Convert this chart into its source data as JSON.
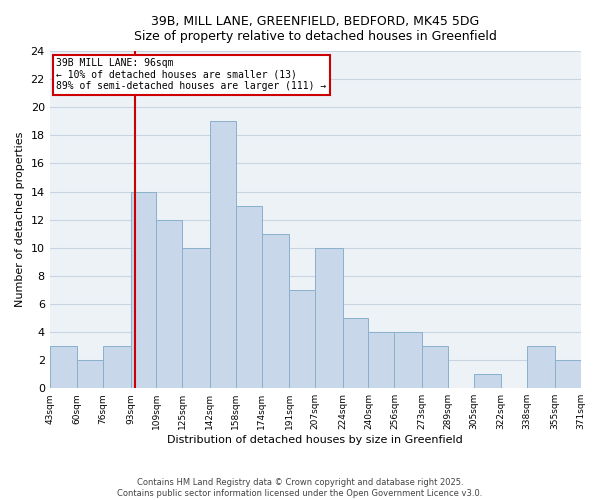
{
  "title_line1": "39B, MILL LANE, GREENFIELD, BEDFORD, MK45 5DG",
  "title_line2": "Size of property relative to detached houses in Greenfield",
  "xlabel": "Distribution of detached houses by size in Greenfield",
  "ylabel": "Number of detached properties",
  "bar_edges": [
    43,
    60,
    76,
    93,
    109,
    125,
    142,
    158,
    174,
    191,
    207,
    224,
    240,
    256,
    273,
    289,
    305,
    322,
    338,
    355,
    371
  ],
  "bar_heights": [
    3,
    2,
    3,
    14,
    12,
    10,
    19,
    13,
    11,
    7,
    10,
    5,
    4,
    4,
    3,
    0,
    1,
    0,
    3,
    2
  ],
  "bar_color": "#c8d8ea",
  "bar_edgecolor": "#8ab0cc",
  "grid_color": "#c8d4e0",
  "background_color": "#edf2f7",
  "vline_x": 96,
  "vline_color": "#cc0000",
  "annotation_text": "39B MILL LANE: 96sqm\n← 10% of detached houses are smaller (13)\n89% of semi-detached houses are larger (111) →",
  "annotation_box_edgecolor": "#cc0000",
  "ylim": [
    0,
    24
  ],
  "yticks": [
    0,
    2,
    4,
    6,
    8,
    10,
    12,
    14,
    16,
    18,
    20,
    22,
    24
  ],
  "tick_labels": [
    "43sqm",
    "60sqm",
    "76sqm",
    "93sqm",
    "109sqm",
    "125sqm",
    "142sqm",
    "158sqm",
    "174sqm",
    "191sqm",
    "207sqm",
    "224sqm",
    "240sqm",
    "256sqm",
    "273sqm",
    "289sqm",
    "305sqm",
    "322sqm",
    "338sqm",
    "355sqm",
    "371sqm"
  ],
  "footer_line1": "Contains HM Land Registry data © Crown copyright and database right 2025.",
  "footer_line2": "Contains public sector information licensed under the Open Government Licence v3.0."
}
